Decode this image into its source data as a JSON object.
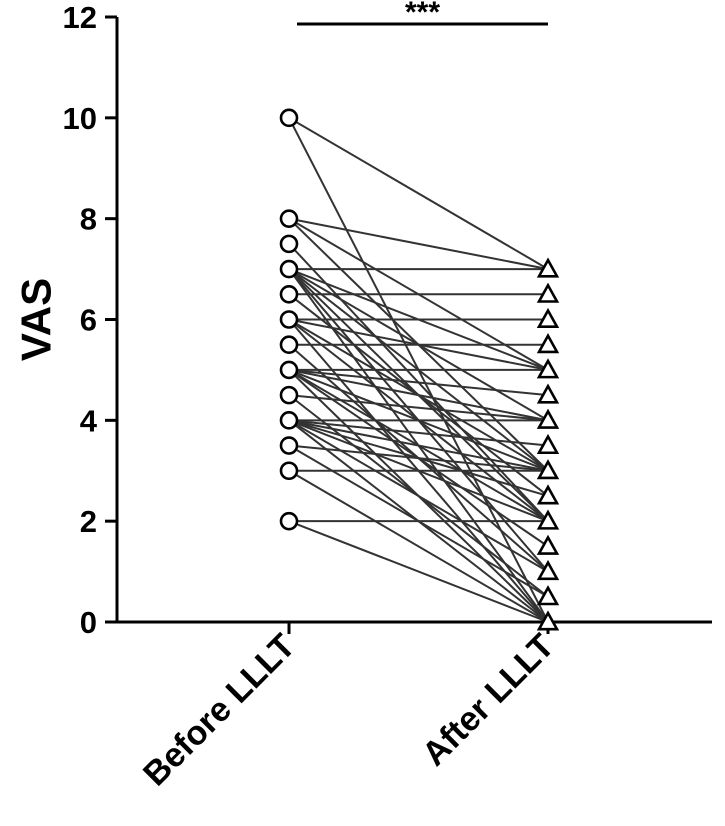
{
  "chart_data": {
    "type": "line",
    "subtype": "paired-before-after",
    "ylabel": "VAS",
    "xlabel": "",
    "ylim": [
      0,
      12
    ],
    "y_ticks": [
      0,
      2,
      4,
      6,
      8,
      10,
      12
    ],
    "categories": [
      "Before LLLT",
      "After LLLT"
    ],
    "markers": {
      "Before LLLT": "open-circle",
      "After LLLT": "open-triangle"
    },
    "significance": {
      "between": [
        "Before LLLT",
        "After LLLT"
      ],
      "label": "***"
    },
    "pairs": [
      [
        10,
        7
      ],
      [
        10,
        0
      ],
      [
        8,
        7
      ],
      [
        8,
        5
      ],
      [
        8,
        3
      ],
      [
        7.5,
        2
      ],
      [
        7,
        7
      ],
      [
        7,
        5
      ],
      [
        7,
        4
      ],
      [
        7,
        3
      ],
      [
        7,
        2
      ],
      [
        7,
        1
      ],
      [
        7,
        0
      ],
      [
        6.5,
        6.5
      ],
      [
        6.5,
        2.5
      ],
      [
        6,
        6
      ],
      [
        6,
        5
      ],
      [
        6,
        3
      ],
      [
        6,
        2
      ],
      [
        6,
        0
      ],
      [
        5.5,
        5.5
      ],
      [
        5.5,
        1
      ],
      [
        5,
        5
      ],
      [
        5,
        4.5
      ],
      [
        5,
        4
      ],
      [
        5,
        3
      ],
      [
        5,
        2
      ],
      [
        5,
        1.5
      ],
      [
        5,
        0
      ],
      [
        4.5,
        4
      ],
      [
        4.5,
        0.5
      ],
      [
        4,
        4
      ],
      [
        4,
        3.5
      ],
      [
        4,
        3
      ],
      [
        4,
        2.5
      ],
      [
        4,
        2
      ],
      [
        4,
        1
      ],
      [
        4,
        0
      ],
      [
        3.5,
        3
      ],
      [
        3.5,
        0.5
      ],
      [
        3,
        3
      ],
      [
        3,
        0
      ],
      [
        2,
        2
      ],
      [
        2,
        0
      ]
    ],
    "grid": false,
    "legend": "none"
  }
}
